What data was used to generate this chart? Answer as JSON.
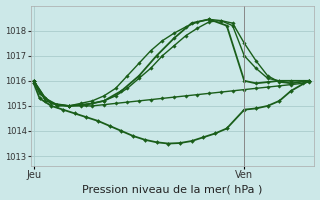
{
  "bg_color": "#cce8e8",
  "grid_color": "#aacccc",
  "line_color": "#1a5e1a",
  "xlabel": "Pression niveau de la mer( hPa )",
  "xlabel_fontsize": 8,
  "yticks": [
    1013,
    1014,
    1015,
    1016,
    1017,
    1018
  ],
  "xtick_labels": [
    "Jeu",
    "Ven"
  ],
  "xtick_positions": [
    0,
    36
  ],
  "ylim": [
    1012.6,
    1019.0
  ],
  "xlim": [
    -0.5,
    48
  ],
  "vline_x": 36,
  "series": [
    {
      "x": [
        0,
        2,
        4,
        6,
        8,
        10,
        12,
        14,
        16,
        18,
        20,
        22,
        24,
        26,
        28,
        30,
        32,
        34,
        36,
        38,
        40,
        42,
        44,
        46,
        47
      ],
      "y": [
        1016.0,
        1015.2,
        1015.05,
        1015.0,
        1015.0,
        1015.0,
        1015.05,
        1015.1,
        1015.15,
        1015.2,
        1015.25,
        1015.3,
        1015.35,
        1015.4,
        1015.45,
        1015.5,
        1015.55,
        1015.6,
        1015.65,
        1015.7,
        1015.75,
        1015.8,
        1015.85,
        1015.9,
        1015.95
      ],
      "marker": "D",
      "markersize": 1.8,
      "linewidth": 1.0
    },
    {
      "x": [
        0,
        2,
        4,
        6,
        8,
        10,
        12,
        14,
        16,
        18,
        20,
        22,
        24,
        26,
        28,
        30,
        32,
        34,
        36,
        38,
        40,
        42,
        44,
        47
      ],
      "y": [
        1016.0,
        1015.3,
        1015.05,
        1015.0,
        1015.05,
        1015.1,
        1015.2,
        1015.4,
        1015.7,
        1016.1,
        1016.5,
        1017.0,
        1017.4,
        1017.8,
        1018.1,
        1018.35,
        1018.4,
        1018.3,
        1017.5,
        1016.8,
        1016.2,
        1015.95,
        1015.9,
        1016.0
      ],
      "marker": "D",
      "markersize": 1.8,
      "linewidth": 1.0
    },
    {
      "x": [
        0,
        2,
        4,
        6,
        8,
        10,
        12,
        14,
        16,
        18,
        20,
        22,
        24,
        26,
        28,
        30,
        32,
        34,
        36,
        38,
        40,
        42,
        44,
        47
      ],
      "y": [
        1016.0,
        1015.3,
        1015.0,
        1015.0,
        1015.1,
        1015.2,
        1015.4,
        1015.7,
        1016.2,
        1016.7,
        1017.2,
        1017.6,
        1017.9,
        1018.15,
        1018.35,
        1018.45,
        1018.4,
        1018.2,
        1017.0,
        1016.5,
        1016.1,
        1016.0,
        1015.9,
        1016.0
      ],
      "marker": "D",
      "markersize": 1.8,
      "linewidth": 1.0
    },
    {
      "x": [
        0,
        1,
        3,
        6,
        9,
        12,
        15,
        18,
        21,
        24,
        27,
        30,
        33,
        36,
        38,
        40,
        42,
        44,
        47
      ],
      "y": [
        1016.0,
        1015.5,
        1015.1,
        1015.0,
        1015.05,
        1015.2,
        1015.6,
        1016.2,
        1017.0,
        1017.7,
        1018.3,
        1018.45,
        1018.2,
        1016.0,
        1015.9,
        1015.95,
        1016.0,
        1016.0,
        1016.0
      ],
      "marker": "D",
      "markersize": 1.8,
      "linewidth": 1.3
    },
    {
      "x": [
        0,
        1,
        3,
        5,
        7,
        9,
        11,
        13,
        15,
        17,
        19,
        21,
        23,
        25,
        27,
        29,
        31,
        33,
        36,
        38,
        40,
        42,
        44,
        47
      ],
      "y": [
        1015.9,
        1015.3,
        1015.0,
        1014.85,
        1014.7,
        1014.55,
        1014.4,
        1014.2,
        1014.0,
        1013.8,
        1013.65,
        1013.55,
        1013.5,
        1013.52,
        1013.6,
        1013.75,
        1013.9,
        1014.1,
        1014.85,
        1014.9,
        1015.0,
        1015.2,
        1015.6,
        1016.0
      ],
      "marker": "D",
      "markersize": 2.0,
      "linewidth": 1.3
    }
  ]
}
